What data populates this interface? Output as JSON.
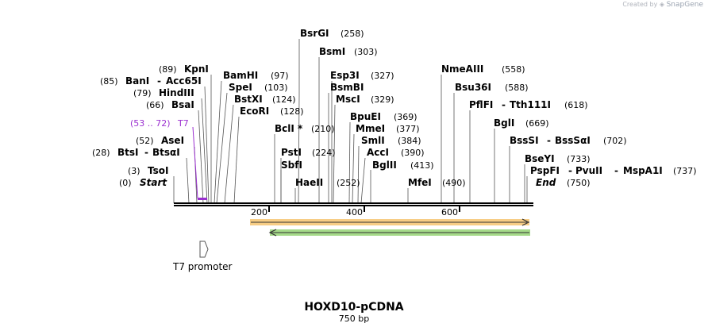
{
  "credit": {
    "prefix": "Created by",
    "brand": "SnapGene"
  },
  "map": {
    "name": "HOXD10-pCDNA",
    "length_label": "750 bp",
    "start_label": "Start",
    "start_pos": "(0)",
    "end_label": "End",
    "end_pos": "(750)",
    "ticks": [
      "200",
      "400",
      "600"
    ],
    "sites": [
      {
        "id": "bsrgi",
        "name": "BsrGI",
        "pos": "(258)"
      },
      {
        "id": "bsmi",
        "name": "BsmI",
        "pos": "(303)"
      },
      {
        "id": "kpni",
        "name": "KpnI",
        "pos": "(89)"
      },
      {
        "id": "bamhi",
        "name": "BamHI",
        "pos": "(97)"
      },
      {
        "id": "esp3i",
        "name": "Esp3I",
        "pos": "(327)"
      },
      {
        "id": "nmeaiii",
        "name": "NmeAIII",
        "pos": "(558)"
      },
      {
        "id": "bani",
        "name": "BanI",
        "pos": "(85)",
        "alt": "Acc65I"
      },
      {
        "id": "spei",
        "name": "SpeI",
        "pos": "(103)"
      },
      {
        "id": "bsmbi",
        "name": "BsmBI",
        "pos": ""
      },
      {
        "id": "bsu36i",
        "name": "Bsu36I",
        "pos": "(588)"
      },
      {
        "id": "hindiii",
        "name": "HindIII",
        "pos": "(79)"
      },
      {
        "id": "bstxi",
        "name": "BstXI",
        "pos": "(124)"
      },
      {
        "id": "msci",
        "name": "MscI",
        "pos": "(329)"
      },
      {
        "id": "pflfi",
        "name": "PflFI",
        "pos": "(618)",
        "alt": "Tth111I"
      },
      {
        "id": "bsai",
        "name": "BsaI",
        "pos": "(66)"
      },
      {
        "id": "ecori",
        "name": "EcoRI",
        "pos": "(128)"
      },
      {
        "id": "bpuei",
        "name": "BpuEI",
        "pos": "(369)"
      },
      {
        "id": "bgli",
        "name": "BglI",
        "pos": "(669)"
      },
      {
        "id": "bcli",
        "name": "BclI *",
        "pos": "(210)"
      },
      {
        "id": "mmei",
        "name": "MmeI",
        "pos": "(377)"
      },
      {
        "id": "asei",
        "name": "AseI",
        "pos": "(52)"
      },
      {
        "id": "smli",
        "name": "SmlI",
        "pos": "(384)"
      },
      {
        "id": "bsssi",
        "name": "BssSI",
        "pos": "(702)",
        "alt": "BssSαI"
      },
      {
        "id": "btsi",
        "name": "BtsI",
        "pos": "(28)",
        "alt": "BtsαI"
      },
      {
        "id": "psti",
        "name": "PstI",
        "pos": "(224)"
      },
      {
        "id": "acci",
        "name": "AccI",
        "pos": "(390)"
      },
      {
        "id": "sbfi",
        "name": "SbfI",
        "pos": ""
      },
      {
        "id": "bglii",
        "name": "BglII",
        "pos": "(413)"
      },
      {
        "id": "bseyi",
        "name": "BseYI",
        "pos": "(733)"
      },
      {
        "id": "tsoi",
        "name": "TsoI",
        "pos": "(3)"
      },
      {
        "id": "pspfi",
        "name": "PspFI",
        "pos": "(737)",
        "alt": "PvuII",
        "alt2": "MspA1I"
      },
      {
        "id": "haeii",
        "name": "HaeII",
        "pos": "(252)"
      },
      {
        "id": "mfei",
        "name": "MfeI",
        "pos": "(490)"
      }
    ],
    "primer": {
      "name": "T7",
      "pos": "(53 .. 72)"
    },
    "promoter": {
      "name": "T7 promoter"
    },
    "colors": {
      "backbone": "#000000",
      "orange_feature": "#f0a030",
      "green_feature": "#3a9a1e",
      "primer": "#9b30d0"
    }
  }
}
